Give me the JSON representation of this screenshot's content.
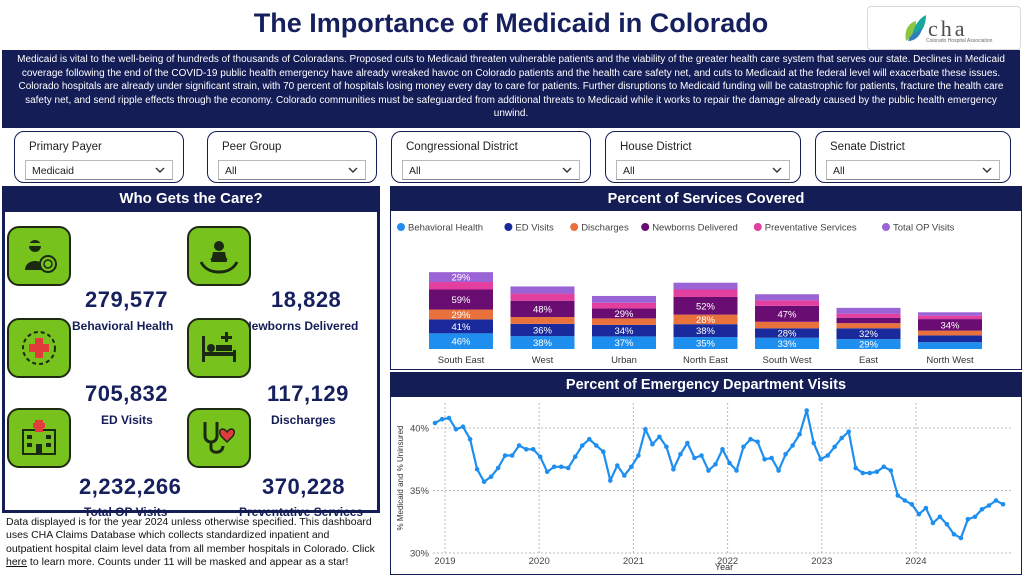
{
  "header": {
    "title": "The Importance of Medicaid in Colorado",
    "logo_text": "cha",
    "logo_sub": "Colorado Hospital Association"
  },
  "intro_text": "Medicaid is vital to the well-being of hundreds of thousands of Coloradans. Proposed cuts to Medicaid threaten vulnerable patients and the viability of the greater health care system that serves our state. Declines in Medicaid coverage following the end of the COVID-19 public health emergency have already wreaked havoc on Colorado patients and the health care safety net, and cuts to Medicaid at the federal level will exacerbate these issues. Colorado hospitals are already under significant strain, with 70 percent of hospitals losing money every day to care for patients. Further disruptions to Medicaid funding will be catastrophic for patients, fracture the health care safety net, and send ripple effects through the economy. Colorado communities must be safeguarded from additional threats to Medicaid while it works to repair the damage already caused by the public health emergency unwind.",
  "filters": [
    {
      "label": "Primary Payer",
      "value": "Medicaid"
    },
    {
      "label": "Peer Group",
      "value": "All"
    },
    {
      "label": "Congressional District",
      "value": "All"
    },
    {
      "label": "House District",
      "value": "All"
    },
    {
      "label": "Senate District",
      "value": "All"
    }
  ],
  "who": {
    "title": "Who Gets the Care?",
    "stats": [
      {
        "value": "279,577",
        "label": "Behavioral Health",
        "icon": "behavioral-health-icon"
      },
      {
        "value": "18,828",
        "label": "Newborns Delivered",
        "icon": "newborn-icon"
      },
      {
        "value": "705,832",
        "label": "ED Visits",
        "icon": "emergency-icon"
      },
      {
        "value": "117,129",
        "label": "Discharges",
        "icon": "hospital-bed-icon"
      },
      {
        "value": "2,232,266",
        "label": "Total OP Visits",
        "icon": "hospital-building-icon"
      },
      {
        "value": "370,228",
        "label": "Preventative Services",
        "icon": "stethoscope-heart-icon"
      }
    ]
  },
  "note": {
    "text_before": "Data displayed is for the year 2024 unless otherwise specified. This dashboard uses CHA Claims Database which collects standardized inpatient and outpatient hospital claim level data from all member hospitals in Colorado. Click ",
    "link": "here",
    "text_after": " to learn more. Counts under 11 will be masked and appear as a star!"
  },
  "services": {
    "title": "Percent of Services Covered"
  },
  "ed": {
    "title": "Percent of Emergency Department Visits"
  },
  "chart_data": [
    {
      "type": "bar",
      "stacked": true,
      "title": "Percent of Services Covered",
      "categories": [
        "South East",
        "West",
        "Urban",
        "North East",
        "South West",
        "East",
        "North West"
      ],
      "legend_position": "top-left",
      "series": [
        {
          "name": "Behavioral Health",
          "color": "#1f8fef",
          "values": [
            46,
            38,
            37,
            35,
            33,
            29,
            20
          ]
        },
        {
          "name": "ED Visits",
          "color": "#1a2a9c",
          "values": [
            41,
            36,
            34,
            38,
            28,
            32,
            20
          ]
        },
        {
          "name": "Discharges",
          "color": "#e8713c",
          "values": [
            29,
            20,
            19,
            28,
            19,
            15,
            14
          ]
        },
        {
          "name": "Newborns Delivered",
          "color": "#6a0d73",
          "values": [
            59,
            48,
            29,
            52,
            47,
            16,
            34
          ]
        },
        {
          "name": "Preventative Services",
          "color": "#e23f9f",
          "values": [
            22,
            21,
            17,
            22,
            16,
            12,
            10
          ]
        },
        {
          "name": "Total OP Visits",
          "color": "#9a63d6",
          "values": [
            29,
            21,
            20,
            20,
            18,
            17,
            10
          ]
        }
      ],
      "labels": {
        "Behavioral Health": [
          "46%",
          "38%",
          "37%",
          "35%",
          "33%",
          "29%",
          ""
        ],
        "ED Visits": [
          "41%",
          "36%",
          "34%",
          "38%",
          "28%",
          "32%",
          ""
        ],
        "Discharges": [
          "29%",
          "",
          "",
          "28%",
          "",
          "",
          ""
        ],
        "Newborns Delivered": [
          "59%",
          "48%",
          "29%",
          "52%",
          "47%",
          "",
          "34%"
        ],
        "Preventative Services": [
          "",
          "",
          "",
          "",
          "",
          "",
          ""
        ],
        "Total OP Visits": [
          "29%",
          "",
          "",
          "",
          "",
          "",
          ""
        ]
      }
    },
    {
      "type": "line",
      "title": "Percent of Emergency Department Visits",
      "xlabel": "Year",
      "ylabel": "% Medicaid and % Uninsured",
      "x_ticks": [
        "2019",
        "2020",
        "2021",
        "2022",
        "2023",
        "2024"
      ],
      "y_ticks": [
        "30%",
        "35%",
        "40%"
      ],
      "ylim": [
        30,
        42
      ],
      "color": "#1f8fef",
      "grid": true,
      "series": [
        {
          "name": "",
          "values": [
            40.4,
            40.7,
            40.8,
            39.9,
            40.1,
            39.1,
            36.7,
            35.7,
            36.1,
            36.8,
            37.8,
            37.8,
            38.6,
            38.3,
            38.3,
            37.7,
            36.5,
            36.9,
            36.9,
            36.8,
            37.7,
            38.6,
            39.1,
            38.6,
            38.1,
            35.8,
            37.0,
            36.2,
            36.9,
            37.8,
            39.9,
            38.7,
            39.3,
            38.5,
            36.7,
            37.9,
            38.8,
            37.6,
            37.8,
            36.6,
            37.1,
            38.3,
            37.2,
            36.6,
            38.5,
            39.1,
            38.9,
            37.5,
            37.6,
            36.6,
            37.9,
            38.6,
            39.5,
            41.4,
            38.8,
            37.5,
            37.8,
            38.5,
            39.2,
            39.7,
            36.8,
            36.4,
            36.4,
            36.5,
            36.9,
            36.6,
            34.6,
            34.2,
            33.9,
            33.1,
            33.6,
            32.4,
            32.9,
            32.3,
            31.5,
            31.2,
            32.7,
            32.9,
            33.5,
            33.8,
            34.2,
            33.9
          ]
        }
      ]
    }
  ]
}
